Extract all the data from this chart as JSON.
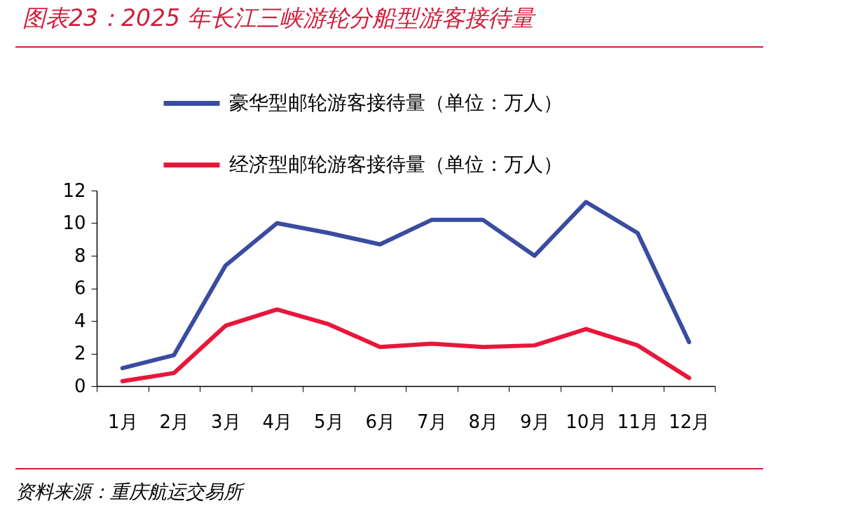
{
  "chart_data": {
    "type": "line",
    "title": "图表23：2025 年长江三峡游轮分船型游客接待量",
    "categories": [
      "1月",
      "2月",
      "3月",
      "4月",
      "5月",
      "6月",
      "7月",
      "8月",
      "9月",
      "10月",
      "11月",
      "12月"
    ],
    "series": [
      {
        "name": "豪华型邮轮游客接待量（单位：万人）",
        "color": "#3a4ca0",
        "values": [
          1.1,
          1.9,
          7.4,
          10.0,
          9.4,
          8.7,
          10.2,
          10.2,
          8.0,
          11.3,
          9.4,
          2.7
        ]
      },
      {
        "name": "经济型邮轮游客接待量（单位：万人）",
        "color": "#e8173a",
        "values": [
          0.3,
          0.8,
          3.7,
          4.7,
          3.8,
          2.4,
          2.6,
          2.4,
          2.5,
          3.5,
          2.5,
          0.5
        ]
      }
    ],
    "ylim": [
      0,
      12
    ],
    "yticks": [
      0,
      2,
      4,
      6,
      8,
      10,
      12
    ],
    "grid": false,
    "legend": "top",
    "marker": "none",
    "line_style": "solid",
    "annotations": [
      "资料来源：重庆航运交易所"
    ]
  }
}
